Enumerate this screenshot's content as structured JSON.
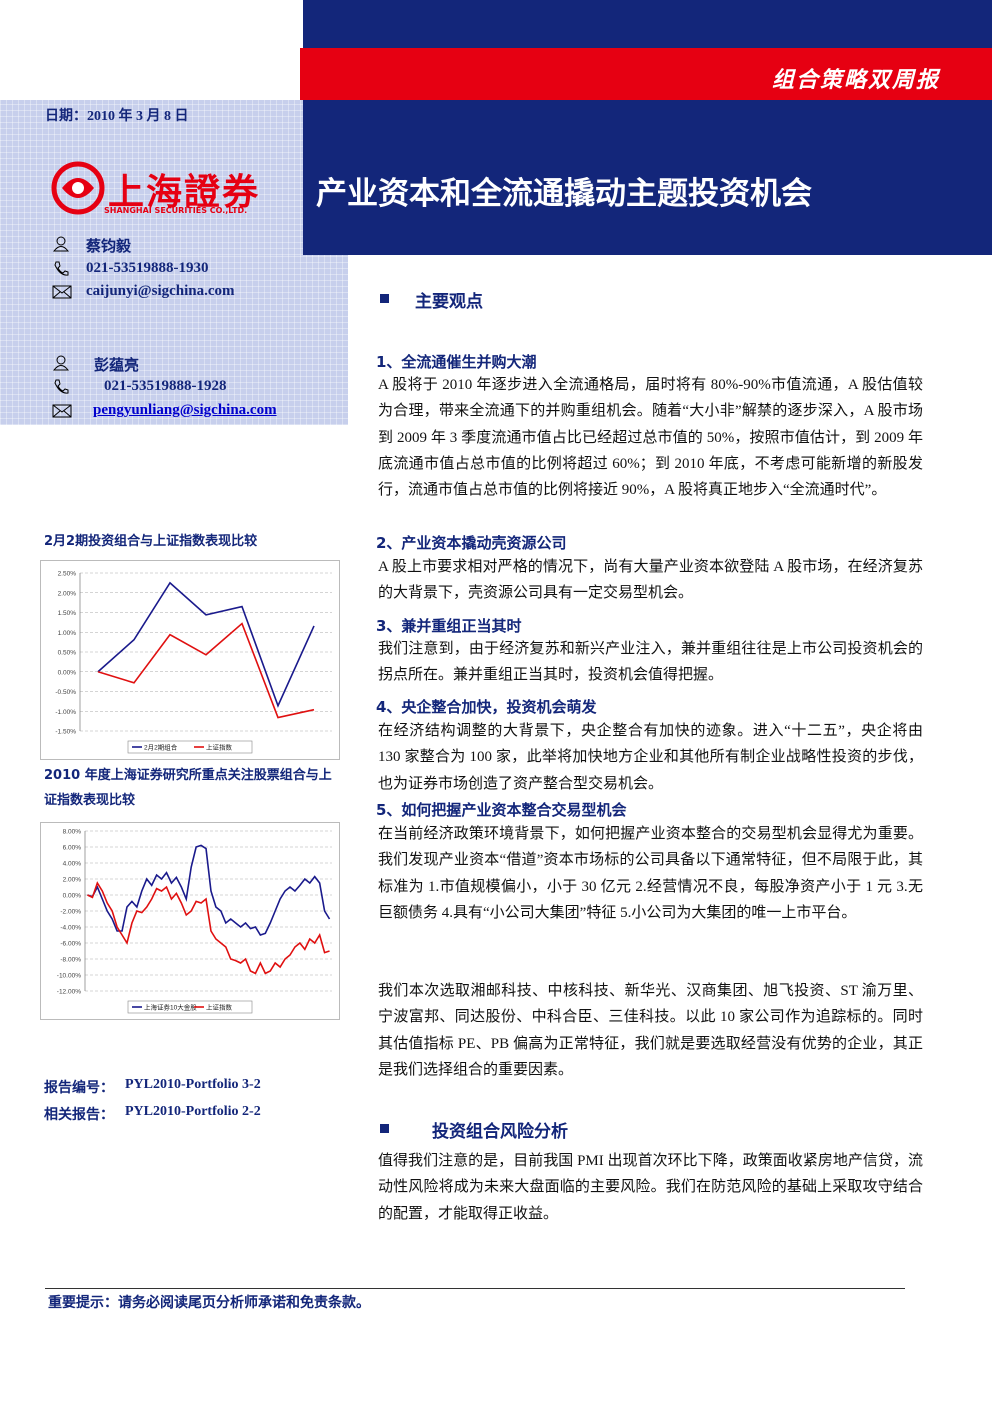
{
  "header": {
    "report_type": "组合策略双周报",
    "date": "日期：2010 年 3 月 8 日",
    "title": "产业资本和全流通撬动主题投资机会",
    "logo_text": "上海證券",
    "logo_en": "SHANGHAI SECURITIES CO.,LTD."
  },
  "analysts": [
    {
      "name": "蔡钧毅",
      "phone": "021-53519888-1930",
      "email": "caijunyi@sigchina.com"
    },
    {
      "name": "彭蕴亮",
      "phone": "021-53519888-1928",
      "email": "pengyunliang@sigchina.com"
    }
  ],
  "main_points": {
    "heading": "主要观点",
    "points": [
      {
        "heading": "1、全流通催生并购大潮",
        "body": "A 股将于 2010 年逐步进入全流通格局，届时将有 80%-90%市值流通，A 股估值较为合理，带来全流通下的并购重组机会。随着“大小非”解禁的逐步深入，A 股市场到 2009 年 3 季度流通市值占比已经超过总市值的 50%，按照市值估计，到 2009 年底流通市值占总市值的比例将超过 60%；到 2010 年底，不考虑可能新增的新股发行，流通市值占总市值的比例将接近 90%，A 股将真正地步入“全流通时代”。"
      },
      {
        "heading": "2、产业资本撬动壳资源公司",
        "body": "A 股上市要求相对严格的情况下，尚有大量产业资本欲登陆 A 股市场，在经济复苏的大背景下，壳资源公司具有一定交易型机会。"
      },
      {
        "heading": "3、兼并重组正当其时",
        "body": "我们注意到，由于经济复苏和新兴产业注入，兼并重组往往是上市公司投资机会的拐点所在。兼并重组正当其时，投资机会值得把握。"
      },
      {
        "heading": "4、央企整合加快，投资机会萌发",
        "body": "在经济结构调整的大背景下，央企整合有加快的迹象。进入“十二五”，央企将由 130 家整合为 100 家，此举将加快地方企业和其他所有制企业战略性投资的步伐，也为证券市场创造了资产整合型交易机会。"
      },
      {
        "heading": "5、如何把握产业资本整合交易型机会",
        "body": "在当前经济政策环境背景下，如何把握产业资本整合的交易型机会显得尤为重要。我们发现产业资本“借道”资本市场标的公司具备以下通常特征，但不局限于此，其标准为 1.市值规模偏小，小于 30 亿元 2.经营情况不良，每股净资产小于 1 元 3.无巨额债务 4.具有“小公司大集团”特征 5.小公司为大集团的唯一上市平台。"
      }
    ],
    "selection": "我们本次选取湘邮科技、中核科技、新华光、汉商集团、旭飞投资、ST 渝万里、宁波富邦、同达股份、中科合臣、三佳科技。以此 10 家公司作为追踪标的。同时其估值指标 PE、PB 偏高为正常特征，我们就是要选取经营没有优势的企业，其正是我们选择组合的重要因素。"
  },
  "risk": {
    "heading": "投资组合风险分析",
    "body": "值得我们注意的是，目前我国 PMI 出现首次环比下降，政策面收紧房地产信贷，流动性风险将成为未来大盘面临的主要风险。我们在防范风险的基础上采取攻守结合的配置，才能取得正收益。"
  },
  "report_info": {
    "number_label": "报告编号：",
    "number": "PYL2010-Portfolio 3-2",
    "related_label": "相关报告：",
    "related": "PYL2010-Portfolio 2-2"
  },
  "footer": {
    "notice": "重要提示：请务必阅读尾页分析师承诺和免责条款。"
  },
  "chart_data": [
    {
      "type": "line",
      "title": "2月2期投资组合与上证指数表现比较",
      "categories": [
        null,
        null,
        null,
        null,
        null,
        null,
        null
      ],
      "series": [
        {
          "name": "2月2期组合",
          "color": "#1a1a8c",
          "values": [
            0,
            0.81,
            2.25,
            1.44,
            1.65,
            -0.86,
            1.16
          ]
        },
        {
          "name": "上证指数",
          "color": "#e01010",
          "values": [
            0,
            -0.28,
            0.94,
            0.43,
            1.22,
            -1.16,
            -0.96
          ]
        }
      ],
      "ylim": [
        -1.5,
        2.5
      ],
      "yticks": [
        {
          "value": 2.5,
          "label": "2.50%"
        },
        {
          "value": 2,
          "label": "2.00%"
        },
        {
          "value": 1.5,
          "label": "1.50%"
        },
        {
          "value": 1,
          "label": "1.00%"
        },
        {
          "value": 0.5,
          "label": "0.50%"
        },
        {
          "value": 0,
          "label": "0.00%"
        },
        {
          "value": -0.5,
          "label": "-0.50%"
        },
        {
          "value": -1,
          "label": "-1.00%"
        },
        {
          "value": -1.5,
          "label": "-1.50%"
        }
      ],
      "grid": true,
      "legend": "bottom"
    },
    {
      "type": "line",
      "title": "2010 年度上海证券研究所重点关注股票组合与上证指数表现比较",
      "categories": [
        null,
        null,
        null,
        null,
        null,
        null,
        null,
        null,
        null,
        null,
        null,
        null,
        null,
        null,
        null,
        null,
        null,
        null,
        null,
        null,
        null,
        null,
        null,
        null,
        null,
        null,
        null,
        null,
        null,
        null,
        null,
        null,
        null,
        null,
        null,
        null,
        null,
        null,
        null,
        null,
        null,
        null,
        null,
        null,
        null,
        null,
        null,
        null,
        null,
        null
      ],
      "series": [
        {
          "name": "上海证券10大金股",
          "color": "#1a1a8c",
          "values": [
            0,
            -0.2,
            1,
            -0.5,
            -2,
            -3,
            -4.5,
            -4.5,
            -1.5,
            -0.8,
            -1.5,
            0.5,
            2,
            1.2,
            2.5,
            2,
            2.8,
            1.5,
            2.2,
            1,
            -0.5,
            3.5,
            6,
            6.2,
            5.8,
            0.5,
            -1.5,
            -2,
            -3.5,
            -3,
            -3.5,
            -4,
            -3.5,
            -4.2,
            -4,
            -5,
            -4.8,
            -3.5,
            -2,
            -0.5,
            0.5,
            1,
            0.5,
            1.2,
            2,
            1.5,
            2.3,
            1.5,
            -2,
            -3
          ]
        },
        {
          "name": "上证指数",
          "color": "#e01010",
          "values": [
            0,
            -0.3,
            1.5,
            0.5,
            -1,
            -2,
            -4,
            -5,
            -6,
            -3.5,
            -2,
            -2.2,
            -1.5,
            -0.5,
            0.8,
            0.5,
            1,
            -0.5,
            0.2,
            -1,
            -2.5,
            -2,
            -0.8,
            -1,
            -0.5,
            -4.5,
            -5.5,
            -6,
            -6.5,
            -8,
            -8.2,
            -8.5,
            -8,
            -9.5,
            -9.8,
            -8.5,
            -9.8,
            -9.5,
            -8.5,
            -9,
            -8,
            -7.5,
            -6.5,
            -6,
            -6.8,
            -5.5,
            -6,
            -5,
            -7.2,
            -7
          ]
        }
      ],
      "ylim": [
        -12,
        8
      ],
      "yticks": [
        {
          "value": 8,
          "label": "8.00%"
        },
        {
          "value": 6,
          "label": "6.00%"
        },
        {
          "value": 4,
          "label": "4.00%"
        },
        {
          "value": 2,
          "label": "2.00%"
        },
        {
          "value": 0,
          "label": "0.00%"
        },
        {
          "value": -2,
          "label": "-2.00%"
        },
        {
          "value": -4,
          "label": "-4.00%"
        },
        {
          "value": -6,
          "label": "-6.00%"
        },
        {
          "value": -8,
          "label": "-8.00%"
        },
        {
          "value": -10,
          "label": "-10.00%"
        },
        {
          "value": -12,
          "label": "-12.00%"
        }
      ],
      "grid": true,
      "legend": "bottom"
    }
  ]
}
